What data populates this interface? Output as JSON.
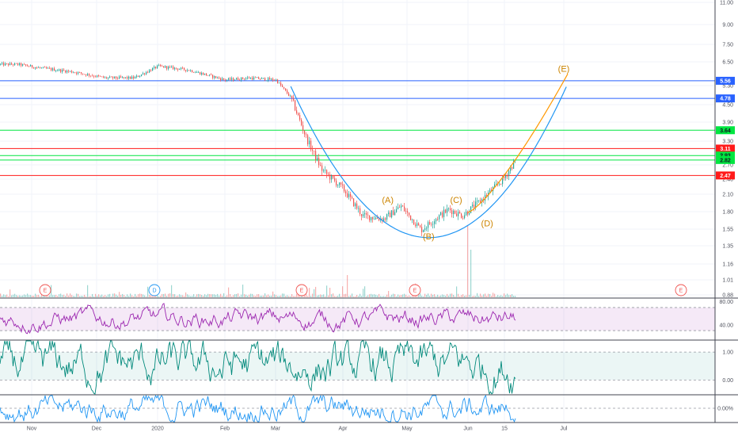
{
  "colors": {
    "up": "#26a69a",
    "down": "#ef5350",
    "blue_line": "#2962ff",
    "green_line": "#00e640",
    "red_line": "#ff1a1a",
    "curve": "#2196f3",
    "orange": "#ff9800",
    "rsi": "#9c27b0",
    "osc": "#00897b",
    "pct": "#2196f3",
    "annotation": "#cc8400"
  },
  "chart_data": [
    {
      "type": "line",
      "axis_scale": "log",
      "y_ticks": [
        "11.00",
        "9.00",
        "7.50",
        "6.50",
        "5.30",
        "4.50",
        "3.90",
        "3.30",
        "2.70",
        "2.40",
        "2.10",
        "1.80",
        "1.55",
        "1.35",
        "1.16",
        "1.01",
        "0.88"
      ],
      "x_ticks": [
        "Nov",
        "Dec",
        "2020",
        "Feb",
        "Mar",
        "Apr",
        "May",
        "Jun",
        "15",
        "Jul"
      ],
      "horizontal_levels": [
        {
          "label": "5.56",
          "value": 5.56,
          "color": "blue"
        },
        {
          "label": "4.78",
          "value": 4.78,
          "color": "blue"
        },
        {
          "label": "3.64",
          "value": 3.64,
          "color": "green"
        },
        {
          "label": "3.11",
          "value": 3.11,
          "color": "red"
        },
        {
          "label": "2.93",
          "value": 2.93,
          "color": "green"
        },
        {
          "label": "2.82",
          "value": 2.82,
          "color": "green"
        },
        {
          "label": "2.47",
          "value": 2.47,
          "color": "red"
        }
      ],
      "price_path": [
        [
          "Oct 25",
          6.4
        ],
        [
          "Nov 5",
          6.2
        ],
        [
          "Nov 20",
          6.0
        ],
        [
          "Dec 5",
          5.7
        ],
        [
          "Dec 20",
          5.7
        ],
        [
          "Jan 1",
          6.3
        ],
        [
          "Jan 15",
          6.1
        ],
        [
          "Feb 1",
          5.6
        ],
        [
          "Feb 15",
          5.7
        ],
        [
          "Mar 1",
          5.6
        ],
        [
          "Mar 8",
          4.8
        ],
        [
          "Mar 15",
          3.4
        ],
        [
          "Mar 22",
          2.6
        ],
        [
          "Apr 1",
          2.2
        ],
        [
          "Apr 10",
          1.75
        ],
        [
          "Apr 20",
          1.7
        ],
        [
          "Apr 28",
          1.9
        ],
        [
          "May 8",
          1.55
        ],
        [
          "May 15",
          1.7
        ],
        [
          "May 22",
          1.85
        ],
        [
          "May 29",
          1.75
        ],
        [
          "Jun 5",
          2.0
        ],
        [
          "Jun 12",
          2.4
        ],
        [
          "Jun 16",
          2.85
        ]
      ],
      "annotations": [
        {
          "label": "(A)",
          "date": "Apr 22",
          "price": 1.95
        },
        {
          "label": "(B)",
          "date": "May 12",
          "price": 1.43
        },
        {
          "label": "(C)",
          "date": "May 26",
          "price": 1.95
        },
        {
          "label": "(D)",
          "date": "Jun 7",
          "price": 1.6
        },
        {
          "label": "(E)",
          "date": "Jul 1",
          "price": 6.0
        }
      ],
      "event_markers": [
        "E",
        "D",
        "E",
        "E",
        "E"
      ]
    },
    {
      "type": "line",
      "name_hidden": true,
      "y_ticks": [
        "80.00",
        "40.00"
      ],
      "band": [
        30,
        70
      ],
      "range": "approx 20-80"
    },
    {
      "type": "line",
      "y_ticks": [
        "1.00",
        "0.00"
      ],
      "band": [
        0,
        1
      ]
    },
    {
      "type": "line",
      "y_ticks": [
        "0.00%"
      ]
    }
  ]
}
